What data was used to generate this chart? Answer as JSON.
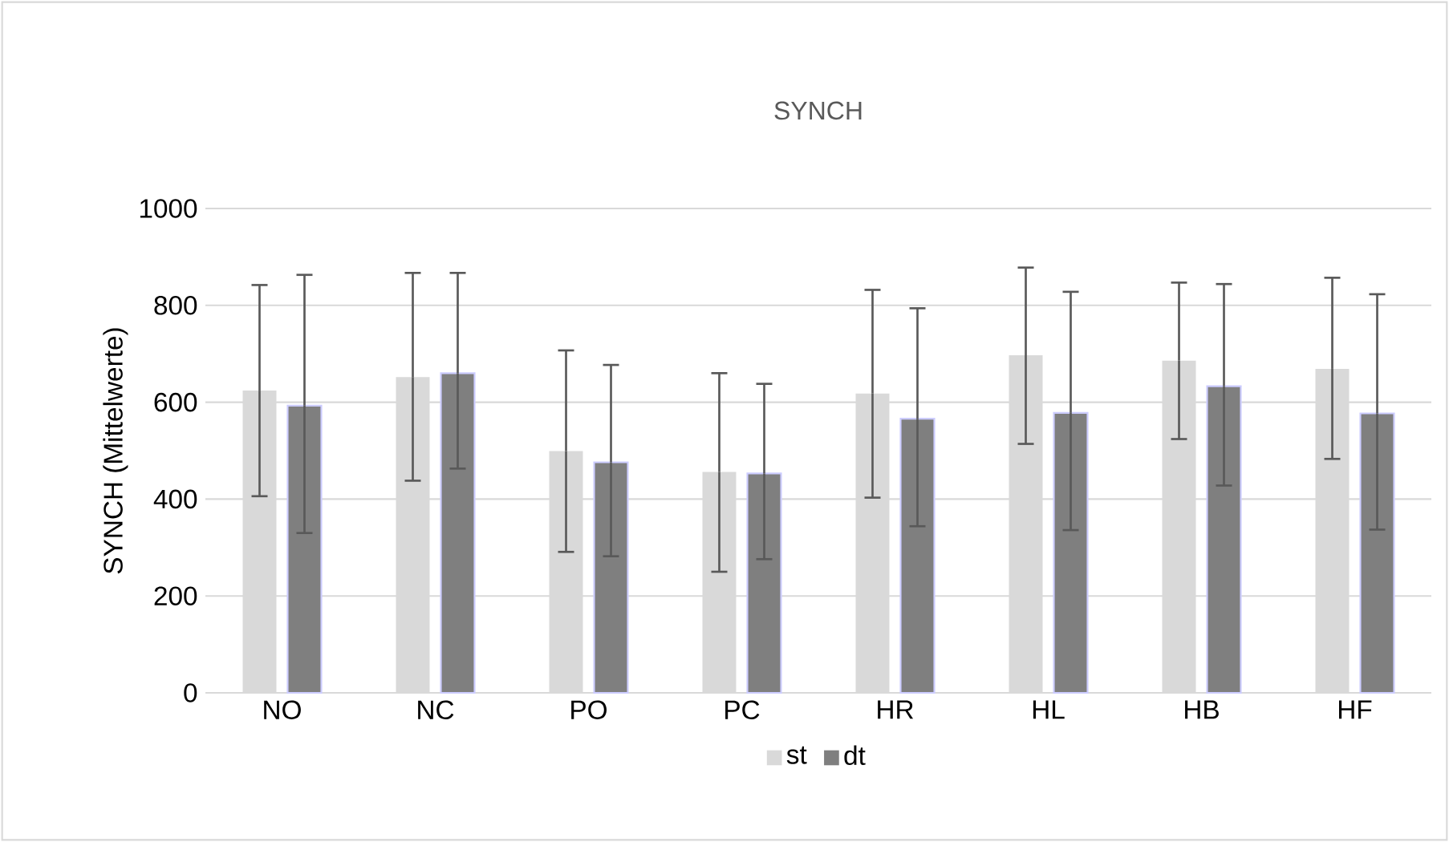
{
  "chart_data": {
    "type": "bar",
    "title": "SYNCH",
    "ylabel": "SYNCH (Mittelwerte)",
    "categories": [
      "NO",
      "NC",
      "PO",
      "PC",
      "HR",
      "HL",
      "HB",
      "HF"
    ],
    "series": [
      {
        "name": "st",
        "color": "#d9d9d9",
        "values": [
          624,
          652,
          499,
          456,
          618,
          697,
          686,
          669
        ],
        "errors": [
          [
            406,
            842
          ],
          [
            438,
            867
          ],
          [
            291,
            707
          ],
          [
            250,
            660
          ],
          [
            403,
            832
          ],
          [
            514,
            878
          ],
          [
            524,
            847
          ],
          [
            483,
            857
          ]
        ]
      },
      {
        "name": "dt",
        "color": "#7f7f7f",
        "values": [
          593,
          660,
          476,
          453,
          566,
          578,
          633,
          577
        ],
        "errors": [
          [
            330,
            863
          ],
          [
            463,
            867
          ],
          [
            282,
            677
          ],
          [
            276,
            638
          ],
          [
            344,
            794
          ],
          [
            336,
            828
          ],
          [
            428,
            844
          ],
          [
            337,
            823
          ]
        ]
      }
    ],
    "ylim": [
      0,
      1000
    ],
    "yticks": [
      0,
      200,
      400,
      600,
      800,
      1000
    ],
    "grid": "y",
    "legend": "bottom"
  }
}
